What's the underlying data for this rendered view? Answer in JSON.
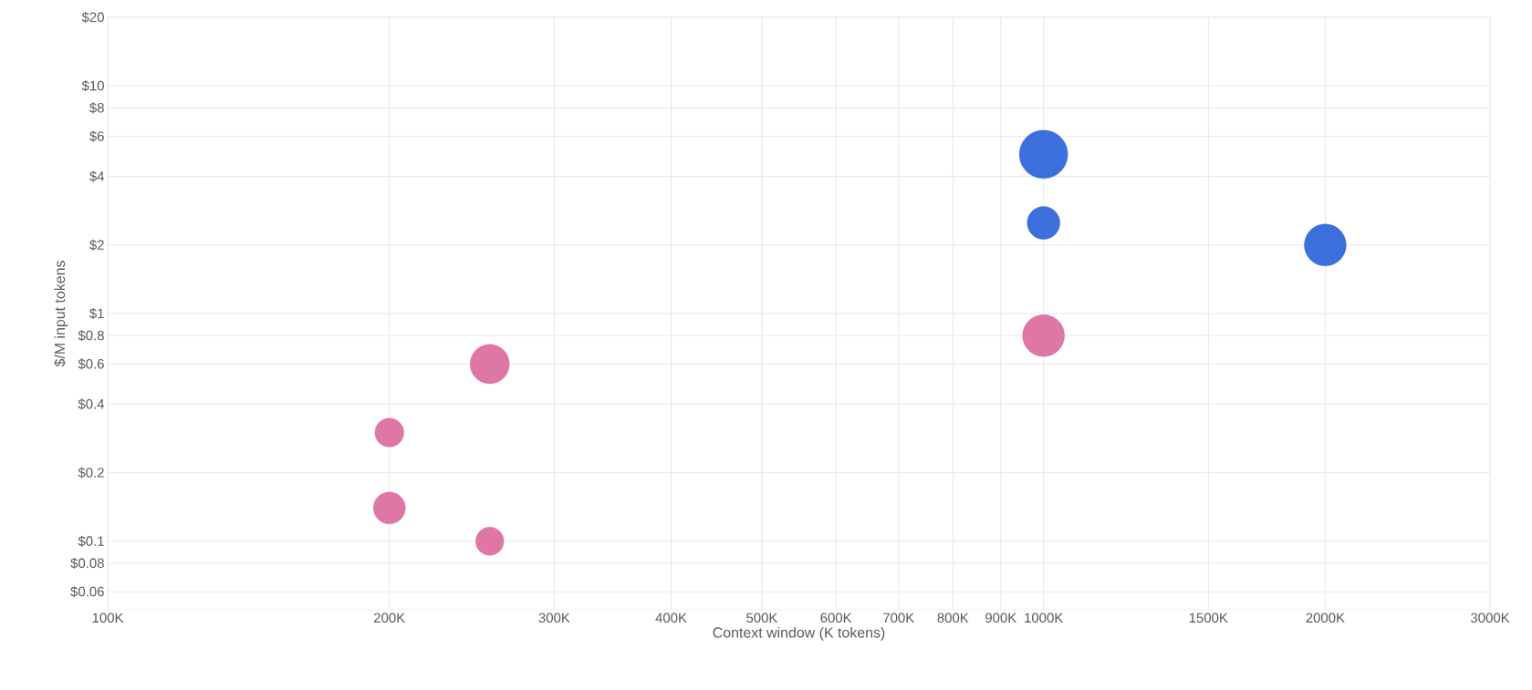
{
  "chart_data": {
    "type": "bubble",
    "xlabel": "Context window (K tokens)",
    "ylabel": "$/M input tokens",
    "log": "xy",
    "grid": true,
    "xlim": [
      100,
      3000
    ],
    "ylim": [
      0.05,
      20
    ],
    "xticks": [
      {
        "value": 100,
        "label": "100K"
      },
      {
        "value": 200,
        "label": "200K"
      },
      {
        "value": 300,
        "label": "300K"
      },
      {
        "value": 400,
        "label": "400K"
      },
      {
        "value": 500,
        "label": "500K"
      },
      {
        "value": 600,
        "label": "600K"
      },
      {
        "value": 700,
        "label": "700K"
      },
      {
        "value": 800,
        "label": "800K"
      },
      {
        "value": 900,
        "label": "900K"
      },
      {
        "value": 1000,
        "label": "1000K"
      },
      {
        "value": 1500,
        "label": "1500K"
      },
      {
        "value": 2000,
        "label": "2000K"
      },
      {
        "value": 3000,
        "label": "3000K"
      }
    ],
    "yticks": [
      {
        "value": 0.06,
        "label": "$0.06"
      },
      {
        "value": 0.08,
        "label": "$0.08"
      },
      {
        "value": 0.1,
        "label": "$0.1"
      },
      {
        "value": 0.2,
        "label": "$0.2"
      },
      {
        "value": 0.4,
        "label": "$0.4"
      },
      {
        "value": 0.6,
        "label": "$0.6"
      },
      {
        "value": 0.8,
        "label": "$0.8"
      },
      {
        "value": 1,
        "label": "$1"
      },
      {
        "value": 2,
        "label": "$2"
      },
      {
        "value": 4,
        "label": "$4"
      },
      {
        "value": 6,
        "label": "$6"
      },
      {
        "value": 8,
        "label": "$8"
      },
      {
        "value": 10,
        "label": "$10"
      },
      {
        "value": 20,
        "label": "$20"
      }
    ],
    "series": [
      {
        "color": "#de77a5",
        "x": [
          200,
          200,
          256,
          256,
          1000
        ],
        "values": [
          0.3,
          0.14,
          0.1,
          0.6,
          0.8
        ],
        "sizes": [
          0.36,
          0.44,
          0.34,
          0.66,
          0.75
        ]
      },
      {
        "color": "#3d6fdc",
        "x": [
          1000,
          1000,
          2000
        ],
        "values": [
          5,
          2.5,
          2
        ],
        "sizes": [
          1,
          0.46,
          0.75
        ]
      }
    ]
  }
}
